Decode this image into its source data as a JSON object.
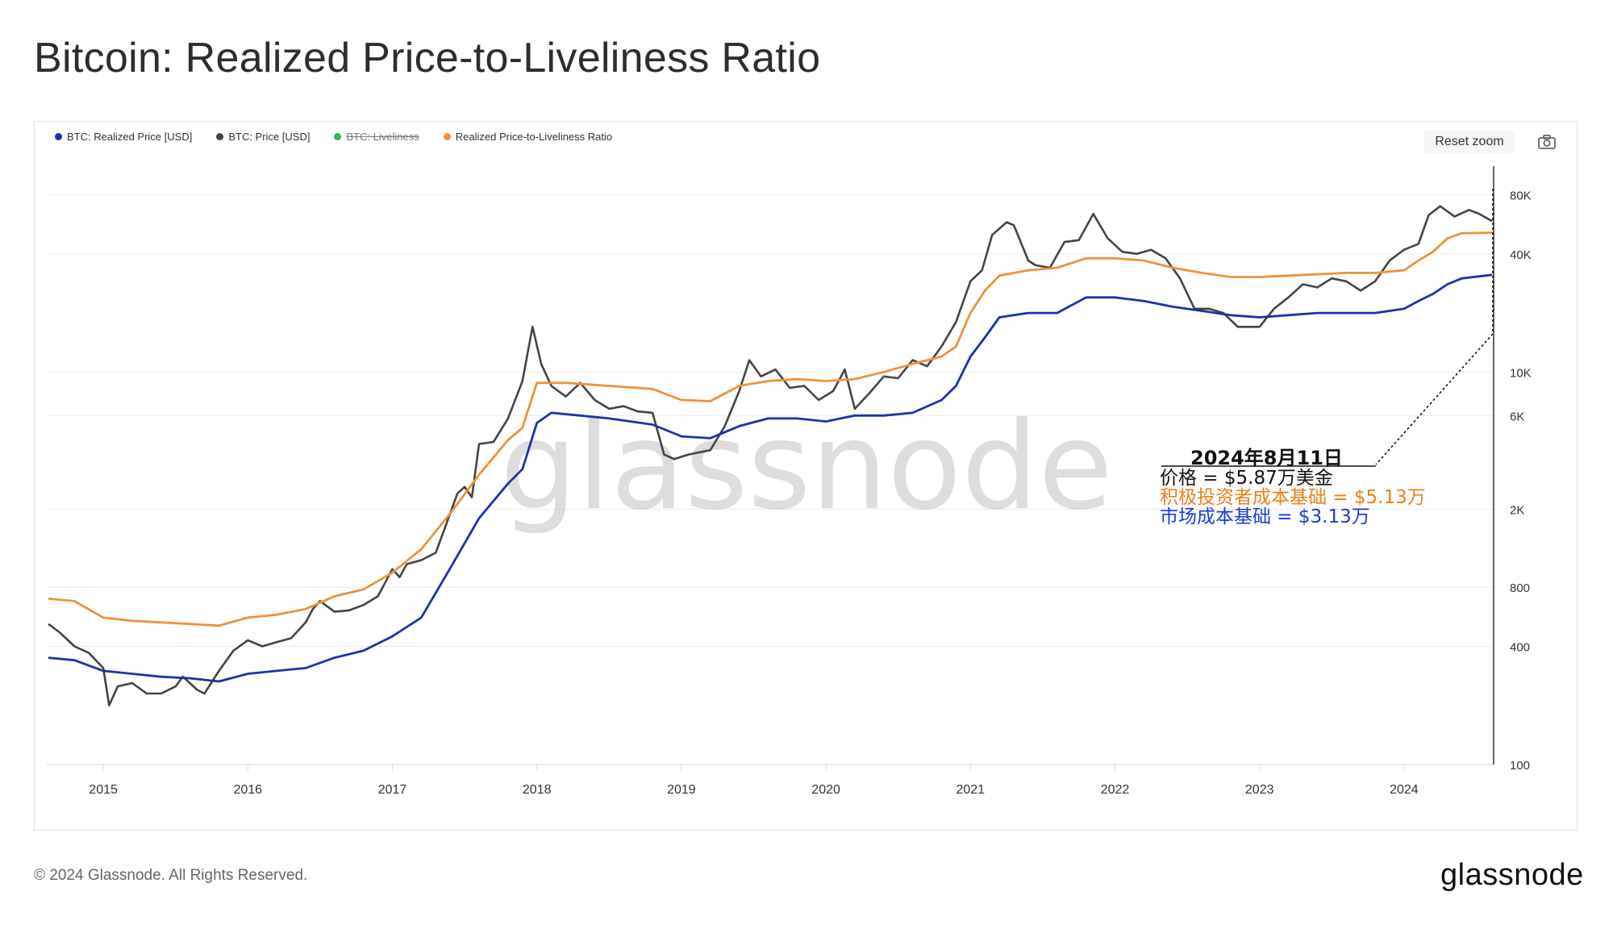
{
  "page": {
    "title": "Bitcoin: Realized Price-to-Liveliness Ratio",
    "copyright": "© 2024 Glassnode. All Rights Reserved.",
    "brand": "glassnode",
    "watermark": "glassnode"
  },
  "toolbar": {
    "reset_zoom_label": "Reset zoom",
    "camera_icon": "camera-icon"
  },
  "legend": [
    {
      "label": "BTC: Realized Price [USD]",
      "color": "#1a33a8",
      "disabled": false
    },
    {
      "label": "BTC: Price [USD]",
      "color": "#444444",
      "disabled": false
    },
    {
      "label": "BTC: Liveliness",
      "color": "#2fb84a",
      "disabled": true
    },
    {
      "label": "Realized Price-to-Liveliness Ratio",
      "color": "#f0913a",
      "disabled": false
    }
  ],
  "annotation": {
    "date": "2024年8月11日",
    "price_line": "价格 = $5.87万美金",
    "active_line": "积极投资者成本基础 = $5.13万",
    "market_line": "市场成本基础 = $3.13万",
    "active_color": "#f07d18",
    "market_color": "#1a3ad8"
  },
  "chart_data": {
    "type": "line",
    "title": "Bitcoin: Realized Price-to-Liveliness Ratio",
    "xlabel": "",
    "ylabel": "",
    "y_scale": "log",
    "ylim": [
      100,
      100000
    ],
    "xlim": [
      2014.62,
      2024.62
    ],
    "x_ticks": [
      "2015",
      "2016",
      "2017",
      "2018",
      "2019",
      "2020",
      "2021",
      "2022",
      "2023",
      "2024"
    ],
    "x_tick_values": [
      2015,
      2016,
      2017,
      2018,
      2019,
      2020,
      2021,
      2022,
      2023,
      2024
    ],
    "y_ticks": [
      "100",
      "400",
      "800",
      "2K",
      "6K",
      "10K",
      "40K",
      "80K"
    ],
    "y_tick_values": [
      100,
      400,
      800,
      2000,
      6000,
      10000,
      40000,
      80000
    ],
    "series": [
      {
        "name": "BTC: Price [USD]",
        "color": "#444444",
        "x": [
          2014.62,
          2014.7,
          2014.8,
          2014.9,
          2015.0,
          2015.04,
          2015.1,
          2015.2,
          2015.3,
          2015.4,
          2015.5,
          2015.55,
          2015.65,
          2015.7,
          2015.8,
          2015.9,
          2016.0,
          2016.1,
          2016.2,
          2016.3,
          2016.4,
          2016.45,
          2016.5,
          2016.6,
          2016.7,
          2016.8,
          2016.9,
          2017.0,
          2017.05,
          2017.1,
          2017.2,
          2017.3,
          2017.4,
          2017.45,
          2017.5,
          2017.55,
          2017.6,
          2017.7,
          2017.8,
          2017.9,
          2017.97,
          2018.03,
          2018.1,
          2018.2,
          2018.3,
          2018.4,
          2018.5,
          2018.6,
          2018.7,
          2018.8,
          2018.88,
          2018.95,
          2019.05,
          2019.2,
          2019.3,
          2019.4,
          2019.47,
          2019.55,
          2019.65,
          2019.75,
          2019.85,
          2019.95,
          2020.05,
          2020.13,
          2020.2,
          2020.3,
          2020.4,
          2020.5,
          2020.6,
          2020.7,
          2020.8,
          2020.9,
          2021.0,
          2021.08,
          2021.15,
          2021.25,
          2021.3,
          2021.4,
          2021.45,
          2021.55,
          2021.65,
          2021.75,
          2021.85,
          2021.95,
          2022.05,
          2022.15,
          2022.25,
          2022.35,
          2022.45,
          2022.55,
          2022.65,
          2022.75,
          2022.85,
          2022.92,
          2023.0,
          2023.1,
          2023.2,
          2023.3,
          2023.4,
          2023.5,
          2023.6,
          2023.7,
          2023.8,
          2023.9,
          2024.0,
          2024.1,
          2024.17,
          2024.25,
          2024.35,
          2024.45,
          2024.52,
          2024.61
        ],
        "values": [
          520,
          470,
          400,
          370,
          310,
          200,
          250,
          260,
          230,
          230,
          250,
          280,
          240,
          230,
          300,
          380,
          430,
          400,
          420,
          440,
          530,
          620,
          680,
          600,
          610,
          650,
          720,
          990,
          900,
          1050,
          1100,
          1200,
          1900,
          2400,
          2600,
          2300,
          4300,
          4400,
          5800,
          9000,
          17000,
          11000,
          8500,
          7500,
          8800,
          7200,
          6500,
          6700,
          6300,
          6200,
          3800,
          3600,
          3800,
          4000,
          5300,
          8000,
          11500,
          9500,
          10300,
          8300,
          8500,
          7200,
          8000,
          10300,
          6500,
          7800,
          9500,
          9300,
          11500,
          10700,
          13500,
          18000,
          29000,
          33000,
          50000,
          58000,
          56000,
          37000,
          35000,
          34000,
          46000,
          47000,
          64000,
          48000,
          41000,
          40000,
          42000,
          38000,
          30000,
          21000,
          21000,
          20000,
          17000,
          17000,
          17000,
          21000,
          24000,
          28000,
          27000,
          30000,
          29000,
          26000,
          29000,
          37000,
          42000,
          45000,
          63000,
          70000,
          62000,
          67000,
          64000,
          58700
        ]
      },
      {
        "name": "BTC: Realized Price [USD]",
        "color": "#1a33a8",
        "x": [
          2014.62,
          2014.8,
          2015.0,
          2015.2,
          2015.4,
          2015.6,
          2015.8,
          2016.0,
          2016.2,
          2016.4,
          2016.6,
          2016.8,
          2017.0,
          2017.2,
          2017.4,
          2017.6,
          2017.8,
          2017.9,
          2018.0,
          2018.1,
          2018.3,
          2018.5,
          2018.8,
          2019.0,
          2019.2,
          2019.4,
          2019.6,
          2019.8,
          2020.0,
          2020.2,
          2020.4,
          2020.6,
          2020.8,
          2020.9,
          2021.0,
          2021.1,
          2021.2,
          2021.4,
          2021.6,
          2021.8,
          2022.0,
          2022.2,
          2022.4,
          2022.6,
          2022.8,
          2023.0,
          2023.2,
          2023.4,
          2023.6,
          2023.8,
          2024.0,
          2024.1,
          2024.2,
          2024.3,
          2024.4,
          2024.61
        ],
        "values": [
          350,
          340,
          300,
          290,
          280,
          275,
          265,
          290,
          300,
          310,
          350,
          380,
          450,
          560,
          1000,
          1800,
          2700,
          3200,
          5500,
          6200,
          6000,
          5800,
          5400,
          4700,
          4600,
          5300,
          5800,
          5800,
          5600,
          6000,
          6000,
          6200,
          7200,
          8500,
          12000,
          15000,
          19000,
          20000,
          20000,
          24000,
          24000,
          23000,
          21500,
          20500,
          19500,
          19000,
          19500,
          20000,
          20000,
          20000,
          21000,
          23000,
          25000,
          28000,
          30000,
          31300
        ]
      },
      {
        "name": "Realized Price-to-Liveliness Ratio",
        "color": "#f0913a",
        "x": [
          2014.62,
          2014.8,
          2015.0,
          2015.2,
          2015.4,
          2015.6,
          2015.8,
          2016.0,
          2016.2,
          2016.4,
          2016.6,
          2016.8,
          2017.0,
          2017.2,
          2017.4,
          2017.6,
          2017.8,
          2017.9,
          2018.0,
          2018.2,
          2018.5,
          2018.8,
          2019.0,
          2019.2,
          2019.4,
          2019.6,
          2019.8,
          2020.0,
          2020.2,
          2020.4,
          2020.6,
          2020.8,
          2020.9,
          2021.0,
          2021.1,
          2021.2,
          2021.4,
          2021.6,
          2021.8,
          2022.0,
          2022.2,
          2022.4,
          2022.6,
          2022.8,
          2023.0,
          2023.2,
          2023.4,
          2023.6,
          2023.8,
          2024.0,
          2024.1,
          2024.2,
          2024.3,
          2024.4,
          2024.61
        ],
        "values": [
          700,
          680,
          560,
          540,
          530,
          520,
          510,
          560,
          580,
          620,
          720,
          780,
          950,
          1250,
          1900,
          3000,
          4500,
          5200,
          8800,
          8800,
          8500,
          8200,
          7200,
          7100,
          8500,
          9000,
          9200,
          9000,
          9200,
          10000,
          11000,
          12000,
          13500,
          20000,
          26000,
          31000,
          33000,
          34000,
          38000,
          38000,
          37000,
          34000,
          32000,
          30500,
          30500,
          31000,
          31500,
          32000,
          32000,
          33000,
          37000,
          41000,
          48000,
          51000,
          51300
        ]
      }
    ]
  }
}
